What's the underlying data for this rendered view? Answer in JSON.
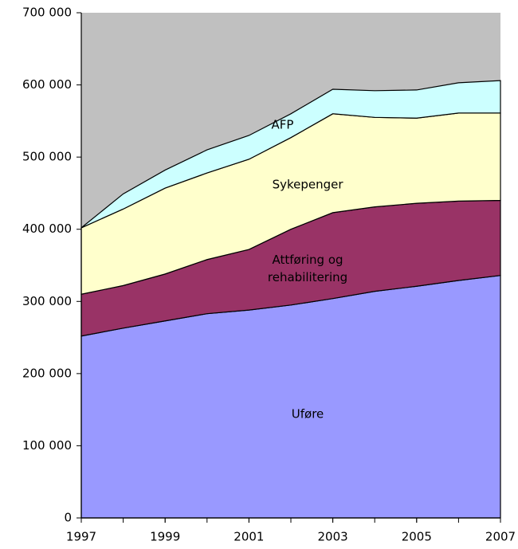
{
  "chart_data": {
    "type": "stacked_area",
    "x": [
      1997,
      1998,
      1999,
      2000,
      2001,
      2002,
      2003,
      2004,
      2005,
      2006,
      2007
    ],
    "series": [
      {
        "name": "Uføre",
        "color": "#9999ff",
        "values": [
          252000,
          263000,
          273000,
          283000,
          288000,
          295000,
          304000,
          314000,
          321000,
          329000,
          336000
        ]
      },
      {
        "name": "Attføring og rehabilitering",
        "color": "#993366",
        "values": [
          58000,
          59000,
          65000,
          75000,
          84000,
          105000,
          119000,
          117000,
          115000,
          110000,
          104000
        ]
      },
      {
        "name": "Sykepenger",
        "color": "#ffffcc",
        "values": [
          92000,
          106000,
          119000,
          120000,
          125000,
          127000,
          137000,
          124000,
          118000,
          122000,
          121000
        ]
      },
      {
        "name": "AFP",
        "color": "#ccffff",
        "values": [
          0,
          21000,
          25000,
          32000,
          33000,
          33000,
          34000,
          37000,
          39000,
          42000,
          45000
        ]
      }
    ],
    "xlim": [
      1997,
      2007
    ],
    "xticks": [
      1997,
      1999,
      2001,
      2003,
      2005,
      2007
    ],
    "ylim": [
      0,
      700000
    ],
    "yticks": [
      0,
      {
        "value": 100000,
        "label": "100 000"
      },
      {
        "value": 200000,
        "label": "200 000"
      },
      {
        "value": 300000,
        "label": "300 000"
      },
      {
        "value": 400000,
        "label": "400 000"
      },
      {
        "value": 500000,
        "label": "500 000"
      },
      {
        "value": 600000,
        "label": "600 000"
      },
      {
        "value": 700000,
        "label": "700 000"
      }
    ],
    "plot_background": "#c0c0c0",
    "grid": false
  }
}
